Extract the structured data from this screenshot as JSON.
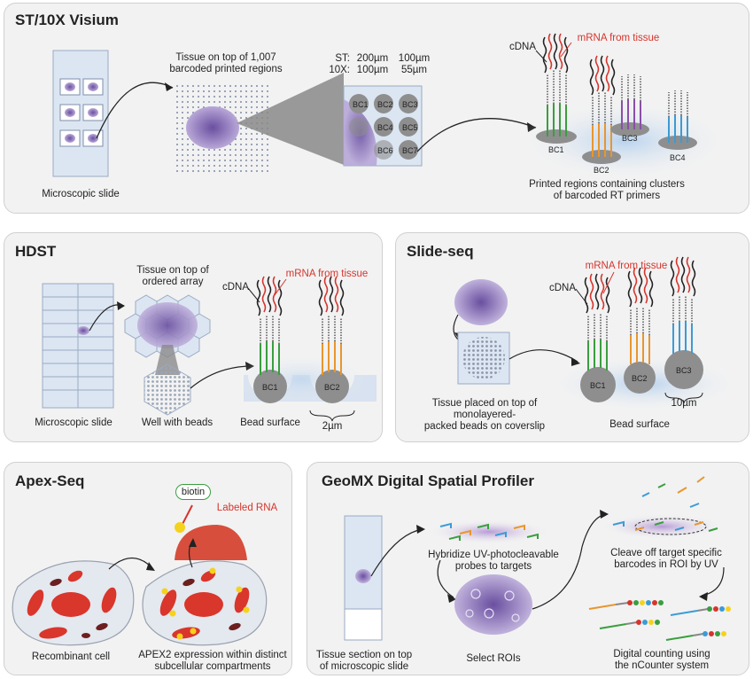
{
  "st": {
    "title": "ST/10X Visium",
    "microscopic_slide": "Microscopic slide",
    "tissue_label_1": "Tissue on top of 1,007",
    "tissue_label_2": "barcoded printed regions",
    "st_row_label": "ST:",
    "st_val_1": "200µm",
    "st_val_2": "100µm",
    "tenx_row_label": "10X:",
    "tenx_val_1": "100µm",
    "tenx_val_2": "55µm",
    "barcodes": [
      "BC1",
      "BC2",
      "BC3",
      "BC4",
      "BC5",
      "BC6",
      "BC7"
    ],
    "cdna": "cDNA",
    "mrna": "mRNA from tissue",
    "clusters": [
      "BC1",
      "BC2",
      "BC3",
      "BC4"
    ],
    "printed_1": "Printed regions containing clusters",
    "printed_2": "of barcoded RT primers"
  },
  "hdst": {
    "title": "HDST",
    "tissue_1": "Tissue on top of",
    "tissue_2": "ordered array",
    "cdna": "cDNA",
    "mrna": "mRNA from tissue",
    "microscopic_slide": "Microscopic slide",
    "well": "Well with beads",
    "bead_surface": "Bead surface",
    "size": "2µm",
    "beads": [
      "BC1",
      "BC2"
    ]
  },
  "slideseq": {
    "title": "Slide-seq",
    "cdna": "cDNA",
    "mrna": "mRNA from tissue",
    "beads": [
      "BC1",
      "BC2",
      "BC3"
    ],
    "size": "10µm",
    "tissue_1": "Tissue placed on top of",
    "tissue_2": "monolayered-",
    "tissue_3": "packed beads on coverslip",
    "bead_surface": "Bead surface"
  },
  "apex": {
    "title": "Apex-Seq",
    "biotin": "biotin",
    "labeled_rna": "Labeled RNA",
    "recombinant": "Recombinant cell",
    "expr_1": "APEX2 expression within distinct",
    "expr_2": "subcellular compartments"
  },
  "geomx": {
    "title": "GeoMX Digital Spatial Profiler",
    "hyb_1": "Hybridize UV-photocleavable",
    "hyb_2": "probes to targets",
    "cleave_1": "Cleave off target specific",
    "cleave_2": "barcodes in ROI by UV",
    "section_1": "Tissue section on top",
    "section_2": "of microscopic slide",
    "select": "Select ROIs",
    "digital_1": "Digital counting using",
    "digital_2": "the nCounter system"
  },
  "colors": {
    "red": "#d6342c",
    "green": "#3a9e3f",
    "orange": "#e8962e",
    "purple": "#8a4fa8",
    "blue": "#3a9bd6",
    "tissue": "#8a7ab8",
    "bead": "#8e8e8e"
  }
}
